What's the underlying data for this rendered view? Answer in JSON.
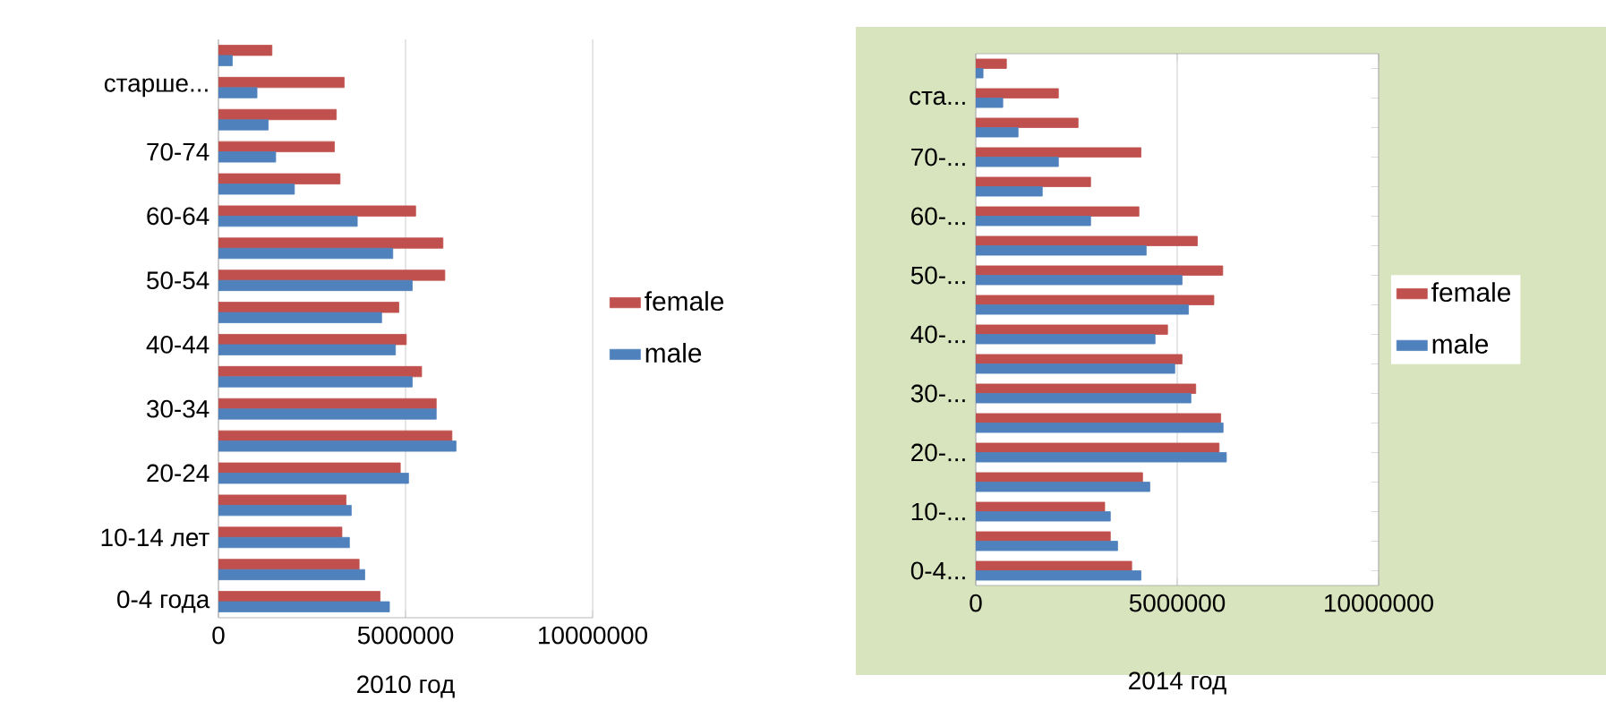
{
  "chart_data": [
    {
      "type": "bar",
      "orientation": "horizontal",
      "xlabel": "2010 год",
      "categories": [
        null,
        "старше...",
        null,
        "70-74",
        null,
        "60-64",
        null,
        "50-54",
        null,
        "40-44",
        null,
        "30-34",
        null,
        "20-24",
        null,
        "10-14 лет",
        null,
        "0-4 года"
      ],
      "series": [
        {
          "name": "female",
          "color": "#c0504d",
          "values": [
            1430000,
            3360000,
            3150000,
            3100000,
            3250000,
            5270000,
            6000000,
            6050000,
            4820000,
            5020000,
            5430000,
            5820000,
            6240000,
            4860000,
            3410000,
            3300000,
            3760000,
            4320000
          ]
        },
        {
          "name": "male",
          "color": "#4f81bd",
          "values": [
            370000,
            1030000,
            1330000,
            1530000,
            2030000,
            3710000,
            4660000,
            5180000,
            4360000,
            4730000,
            5180000,
            5820000,
            6350000,
            5080000,
            3550000,
            3500000,
            3910000,
            4570000
          ]
        }
      ],
      "xlim": [
        0,
        10000000
      ],
      "xticks": [
        0,
        5000000,
        10000000
      ],
      "grid": "x",
      "legend": "right"
    },
    {
      "type": "bar",
      "orientation": "horizontal",
      "xlabel": "2014 год",
      "categories": [
        null,
        "ста...",
        null,
        "70-...",
        null,
        "60-...",
        null,
        "50-...",
        null,
        "40-...",
        null,
        "30-...",
        null,
        "20-...",
        null,
        "10-...",
        null,
        "0-4..."
      ],
      "series": [
        {
          "name": "female",
          "color": "#c0504d",
          "values": [
            760000,
            2050000,
            2540000,
            4100000,
            2850000,
            4050000,
            5500000,
            6130000,
            5910000,
            4760000,
            5120000,
            5460000,
            6080000,
            6040000,
            4140000,
            3200000,
            3340000,
            3870000
          ]
        },
        {
          "name": "male",
          "color": "#4f81bd",
          "values": [
            180000,
            670000,
            1050000,
            2050000,
            1650000,
            2850000,
            4230000,
            5120000,
            5280000,
            4450000,
            4940000,
            5340000,
            6140000,
            6220000,
            4320000,
            3340000,
            3520000,
            4100000
          ]
        }
      ],
      "xlim": [
        0,
        10000000
      ],
      "xticks": [
        0,
        5000000,
        10000000
      ],
      "grid": "x",
      "legend": "right"
    }
  ]
}
